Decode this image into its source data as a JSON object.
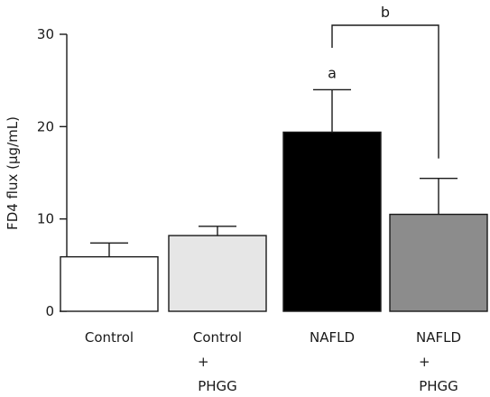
{
  "chart_data": {
    "type": "bar",
    "ylabel": "FD4 flux (μg/mL)",
    "ylim": [
      0,
      30
    ],
    "yticks": [
      0,
      10,
      20,
      30
    ],
    "categories": [
      {
        "lines": [
          "Control"
        ]
      },
      {
        "lines": [
          "Control",
          "+",
          "PHGG"
        ]
      },
      {
        "lines": [
          "NAFLD"
        ]
      },
      {
        "lines": [
          "NAFLD",
          "+",
          "PHGG"
        ]
      }
    ],
    "values": [
      5.9,
      8.2,
      19.4,
      10.5
    ],
    "errors": [
      1.5,
      1.0,
      4.6,
      3.9
    ],
    "colors": [
      "#ffffff",
      "#e6e6e6",
      "#000000",
      "#8c8c8c"
    ],
    "annotations": [
      {
        "text": "a",
        "category_index": 2
      },
      {
        "text": "b",
        "bracket_from": 2,
        "bracket_to": 3
      }
    ]
  }
}
